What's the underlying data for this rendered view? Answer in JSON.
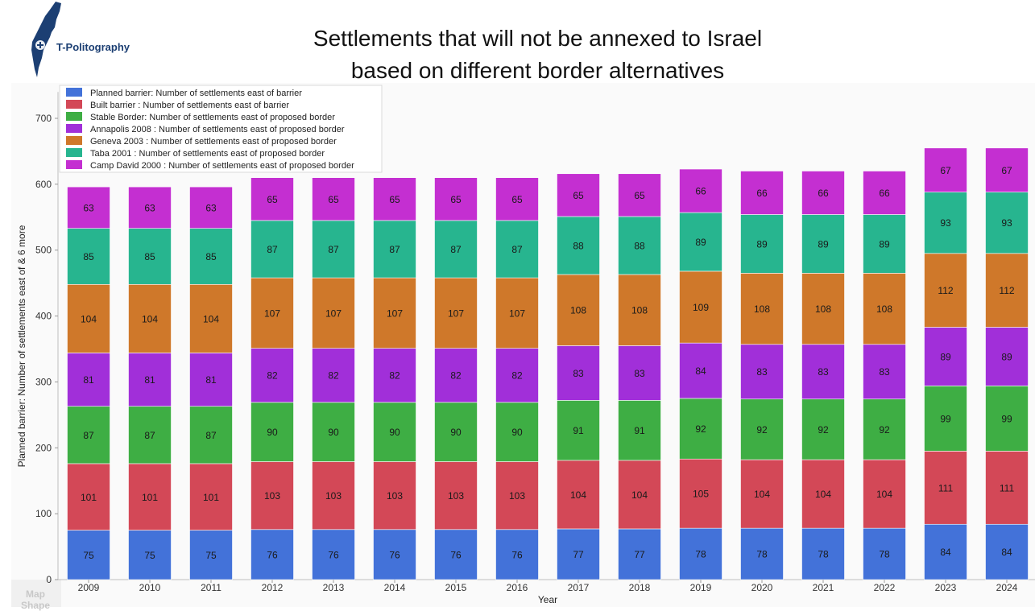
{
  "logo": {
    "text": "T-Politography",
    "icon": "israel-map-icon"
  },
  "title": {
    "line1": "Settlements that will not be annexed to Israel",
    "line2": "based on different border alternatives"
  },
  "corner": {
    "line1": "Map",
    "line2": "Shape"
  },
  "chart_data": {
    "type": "bar",
    "stacked": true,
    "xlabel": "Year",
    "ylabel": "Planned barrier: Number of settlements east of & 6 more",
    "ylim": [
      0,
      740
    ],
    "yticks": [
      0,
      100,
      200,
      300,
      400,
      500,
      600,
      700
    ],
    "legend_position": "top-left",
    "grid": false,
    "categories": [
      "2009",
      "2010",
      "2011",
      "2012",
      "2013",
      "2014",
      "2015",
      "2016",
      "2017",
      "2018",
      "2019",
      "2020",
      "2021",
      "2022",
      "2023",
      "2024"
    ],
    "series": [
      {
        "name": "Planned barrier: Number of settlements east of barrier",
        "color": "#4372d9",
        "values": [
          75,
          75,
          75,
          76,
          76,
          76,
          76,
          76,
          77,
          77,
          78,
          78,
          78,
          78,
          84,
          84
        ]
      },
      {
        "name": "Built barrier : Number of settlements east of barrier",
        "color": "#d34857",
        "values": [
          101,
          101,
          101,
          103,
          103,
          103,
          103,
          103,
          104,
          104,
          105,
          104,
          104,
          104,
          111,
          111
        ]
      },
      {
        "name": "Stable Border: Number of settlements east of proposed border",
        "color": "#3eae44",
        "values": [
          87,
          87,
          87,
          90,
          90,
          90,
          90,
          90,
          91,
          91,
          92,
          92,
          92,
          92,
          99,
          99
        ]
      },
      {
        "name": "Annapolis 2008 : Number of settlements east of proposed border",
        "color": "#a12fd9",
        "values": [
          81,
          81,
          81,
          82,
          82,
          82,
          82,
          82,
          83,
          83,
          84,
          83,
          83,
          83,
          89,
          89
        ]
      },
      {
        "name": "Geneva 2003 : Number of settlements east of proposed border",
        "color": "#cf782a",
        "values": [
          104,
          104,
          104,
          107,
          107,
          107,
          107,
          107,
          108,
          108,
          109,
          108,
          108,
          108,
          112,
          112
        ]
      },
      {
        "name": "Taba 2001 : Number of settlements east of proposed border",
        "color": "#27b58f",
        "values": [
          85,
          85,
          85,
          87,
          87,
          87,
          87,
          87,
          88,
          88,
          89,
          89,
          89,
          89,
          93,
          93
        ]
      },
      {
        "name": "Camp David 2000 : Number of settlements east of proposed border",
        "color": "#c42fd1",
        "values": [
          63,
          63,
          63,
          65,
          65,
          65,
          65,
          65,
          65,
          65,
          66,
          66,
          66,
          66,
          67,
          67
        ]
      }
    ]
  }
}
